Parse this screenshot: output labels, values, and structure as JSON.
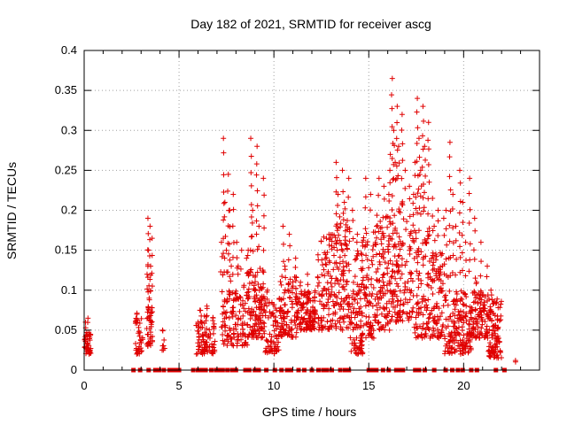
{
  "chart_data": {
    "type": "scatter",
    "title": "Day 182 of 2021, SRMTID for receiver ascg",
    "xlabel": "GPS time / hours",
    "ylabel": "SRMTID / TECUs",
    "xlim": [
      0,
      24
    ],
    "ylim": [
      0,
      0.4
    ],
    "x_ticks": [
      0,
      5,
      10,
      15,
      20
    ],
    "x_tick_labels": [
      "0",
      "5",
      "10",
      "15",
      "20"
    ],
    "y_ticks": [
      0,
      0.05,
      0.1,
      0.15,
      0.2,
      0.25,
      0.3,
      0.35,
      0.4
    ],
    "y_tick_labels": [
      "0",
      "0.05",
      "0.1",
      "0.15",
      "0.2",
      "0.25",
      "0.3",
      "0.35",
      "0.4"
    ],
    "grid": true,
    "marker": "plus",
    "color": "#e00000",
    "zero_markers_x": [
      2.6,
      2.95,
      3.4,
      3.75,
      3.95,
      4.2,
      4.5,
      4.7,
      4.85,
      5.0,
      5.75,
      6.0,
      6.2,
      6.4,
      6.7,
      6.95,
      7.1,
      7.3,
      7.55,
      7.8,
      8.0,
      8.5,
      8.7,
      9.0,
      9.2,
      9.6,
      10.05,
      10.4,
      10.7,
      10.9,
      11.3,
      11.6,
      12.0,
      12.35,
      12.6,
      12.8,
      13.05,
      13.5,
      13.75,
      13.95,
      15.0,
      15.2,
      15.4,
      15.75,
      16.05,
      16.45,
      16.6,
      16.8,
      17.45,
      17.65,
      17.95,
      18.45,
      19.05,
      19.4,
      19.7,
      19.95,
      20.4,
      20.7,
      21.7,
      22.15
    ],
    "clusters": [
      {
        "x_start": 0.0,
        "x_end": 0.35,
        "n": 40,
        "y_min": 0.02,
        "y_max": 0.05,
        "spikes": [
          0.06,
          0.065
        ]
      },
      {
        "x_start": 2.7,
        "x_end": 3.1,
        "n": 35,
        "y_min": 0.02,
        "y_max": 0.065,
        "spikes": [
          0.07
        ]
      },
      {
        "x_start": 3.3,
        "x_end": 3.6,
        "n": 40,
        "y_min": 0.03,
        "y_max": 0.08,
        "spikes": [
          0.19,
          0.18,
          0.165,
          0.15,
          0.13,
          0.12,
          0.09
        ]
      },
      {
        "x_start": 4.1,
        "x_end": 4.25,
        "n": 6,
        "y_min": 0.025,
        "y_max": 0.045,
        "spikes": [
          0.05
        ]
      },
      {
        "x_start": 5.9,
        "x_end": 6.9,
        "n": 90,
        "y_min": 0.02,
        "y_max": 0.07,
        "spikes": [
          0.075,
          0.08
        ]
      },
      {
        "x_start": 7.2,
        "x_end": 7.9,
        "n": 60,
        "y_min": 0.03,
        "y_max": 0.1,
        "spikes": [
          0.29,
          0.245,
          0.22,
          0.21,
          0.2,
          0.16,
          0.15,
          0.13
        ]
      },
      {
        "x_start": 7.9,
        "x_end": 8.6,
        "n": 60,
        "y_min": 0.03,
        "y_max": 0.11,
        "spikes": [
          0.16,
          0.15,
          0.14,
          0.13
        ]
      },
      {
        "x_start": 8.6,
        "x_end": 9.5,
        "n": 130,
        "y_min": 0.04,
        "y_max": 0.13,
        "spikes": [
          0.29,
          0.28,
          0.24,
          0.2,
          0.18,
          0.15
        ]
      },
      {
        "x_start": 9.5,
        "x_end": 10.3,
        "n": 70,
        "y_min": 0.02,
        "y_max": 0.09,
        "spikes": [
          0.1
        ]
      },
      {
        "x_start": 10.3,
        "x_end": 11.2,
        "n": 100,
        "y_min": 0.04,
        "y_max": 0.12,
        "spikes": [
          0.18,
          0.17,
          0.14,
          0.13
        ]
      },
      {
        "x_start": 11.2,
        "x_end": 12.2,
        "n": 120,
        "y_min": 0.05,
        "y_max": 0.1,
        "spikes": [
          0.11,
          0.12
        ]
      },
      {
        "x_start": 12.3,
        "x_end": 13.1,
        "n": 90,
        "y_min": 0.05,
        "y_max": 0.17,
        "spikes": []
      },
      {
        "x_start": 13.1,
        "x_end": 14.0,
        "n": 120,
        "y_min": 0.05,
        "y_max": 0.2,
        "spikes": [
          0.26,
          0.25,
          0.24,
          0.22,
          0.21
        ]
      },
      {
        "x_start": 14.0,
        "x_end": 14.7,
        "n": 100,
        "y_min": 0.02,
        "y_max": 0.15,
        "spikes": [
          0.2,
          0.17,
          0.16
        ]
      },
      {
        "x_start": 14.7,
        "x_end": 15.4,
        "n": 80,
        "y_min": 0.04,
        "y_max": 0.18,
        "spikes": [
          0.24,
          0.22
        ]
      },
      {
        "x_start": 15.4,
        "x_end": 16.1,
        "n": 100,
        "y_min": 0.05,
        "y_max": 0.2,
        "spikes": [
          0.24,
          0.23,
          0.22
        ]
      },
      {
        "x_start": 16.1,
        "x_end": 16.8,
        "n": 100,
        "y_min": 0.06,
        "y_max": 0.22,
        "spikes": [
          0.365,
          0.33,
          0.32,
          0.3,
          0.28,
          0.27,
          0.26
        ]
      },
      {
        "x_start": 16.8,
        "x_end": 17.4,
        "n": 50,
        "y_min": 0.06,
        "y_max": 0.2,
        "spikes": [
          0.25,
          0.23,
          0.22
        ]
      },
      {
        "x_start": 17.4,
        "x_end": 18.2,
        "n": 90,
        "y_min": 0.04,
        "y_max": 0.18,
        "spikes": [
          0.34,
          0.33,
          0.31,
          0.29,
          0.28,
          0.26,
          0.25
        ]
      },
      {
        "x_start": 18.2,
        "x_end": 19.0,
        "n": 90,
        "y_min": 0.04,
        "y_max": 0.15,
        "spikes": [
          0.215,
          0.2,
          0.19,
          0.18
        ]
      },
      {
        "x_start": 19.0,
        "x_end": 20.4,
        "n": 160,
        "y_min": 0.02,
        "y_max": 0.1,
        "spikes": [
          0.285,
          0.25,
          0.24,
          0.22,
          0.21,
          0.2,
          0.18,
          0.16,
          0.14
        ]
      },
      {
        "x_start": 20.4,
        "x_end": 21.3,
        "n": 100,
        "y_min": 0.04,
        "y_max": 0.1,
        "spikes": [
          0.19,
          0.16,
          0.13,
          0.11
        ]
      },
      {
        "x_start": 21.3,
        "x_end": 22.0,
        "n": 100,
        "y_min": 0.015,
        "y_max": 0.09,
        "spikes": [
          0.1
        ]
      },
      {
        "x_start": 22.6,
        "x_end": 22.75,
        "n": 2,
        "y_min": 0.01,
        "y_max": 0.015,
        "spikes": []
      }
    ]
  }
}
